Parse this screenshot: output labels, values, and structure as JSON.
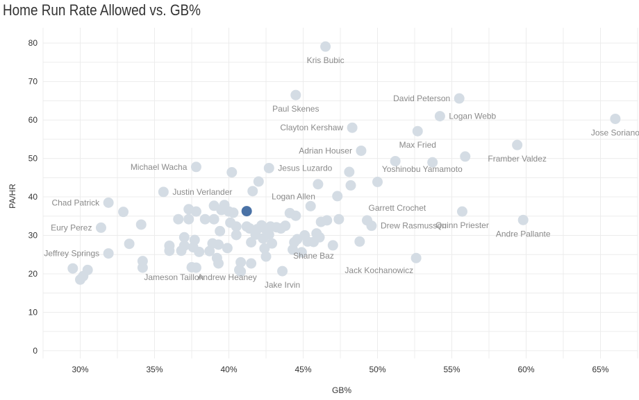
{
  "chart_data": {
    "type": "scatter",
    "title": "Home Run Rate Allowed vs. GB%",
    "xlabel": "GB%",
    "ylabel": "PA/HR",
    "xlim": [
      27.5,
      67.5
    ],
    "ylim": [
      -2,
      84
    ],
    "x_ticks": [
      30,
      35,
      40,
      45,
      50,
      55,
      60,
      65
    ],
    "x_tick_labels": [
      "30%",
      "35%",
      "40%",
      "45%",
      "50%",
      "55%",
      "60%",
      "65%"
    ],
    "y_ticks": [
      0,
      10,
      20,
      30,
      40,
      50,
      60,
      70,
      80
    ],
    "y_tick_labels": [
      "0",
      "10",
      "20",
      "30",
      "40",
      "50",
      "60",
      "70",
      "80"
    ],
    "grid": true,
    "point_color": "#d4dce4",
    "highlight_color": "#4a72a6",
    "labeled_points": [
      {
        "name": "Kris Bubic",
        "x": 46.5,
        "y": 79.1
      },
      {
        "name": "David Peterson",
        "x": 55.5,
        "y": 65.6
      },
      {
        "name": "Paul Skenes",
        "x": 44.5,
        "y": 66.5
      },
      {
        "name": "Logan Webb",
        "x": 54.2,
        "y": 61.0
      },
      {
        "name": "Jose Soriano",
        "x": 66.0,
        "y": 60.3
      },
      {
        "name": "Clayton Kershaw",
        "x": 48.3,
        "y": 58.0
      },
      {
        "name": "Max Fried",
        "x": 52.7,
        "y": 57.1
      },
      {
        "name": "Adrian Houser",
        "x": 48.9,
        "y": 52.0
      },
      {
        "name": "Framber Valdez",
        "x": 59.4,
        "y": 53.5
      },
      {
        "name": "Michael Wacha",
        "x": 37.8,
        "y": 47.8
      },
      {
        "name": "Jesus Luzardo",
        "x": 42.7,
        "y": 47.5
      },
      {
        "name": "Yoshinobu Yamamoto",
        "x": 55.9,
        "y": 50.5
      },
      {
        "name": "Justin Verlander",
        "x": 35.6,
        "y": 41.3
      },
      {
        "name": "Logan Allen",
        "x": 46.0,
        "y": 43.3
      },
      {
        "name": "Chad Patrick",
        "x": 31.9,
        "y": 38.5
      },
      {
        "name": "Garrett Crochet",
        "x": 49.3,
        "y": 33.9
      },
      {
        "name": "Eury Perez",
        "x": 31.4,
        "y": 32.0
      },
      {
        "name": "Drew Rasmussen",
        "x": 49.6,
        "y": 32.5
      },
      {
        "name": "Quinn Priester",
        "x": 55.7,
        "y": 36.2
      },
      {
        "name": "Andre Pallante",
        "x": 59.8,
        "y": 34.0
      },
      {
        "name": "Jeffrey Springs",
        "x": 31.9,
        "y": 25.3
      },
      {
        "name": "Shane Baz",
        "x": 45.7,
        "y": 28.3
      },
      {
        "name": "Jack Kochanowicz",
        "x": 52.6,
        "y": 24.1
      },
      {
        "name": "Jameson Taillon",
        "x": 34.2,
        "y": 21.6
      },
      {
        "name": "Andrew Heaney",
        "x": 37.8,
        "y": 21.6
      },
      {
        "name": "Jake Irvin",
        "x": 43.6,
        "y": 20.7
      }
    ],
    "labels": [
      {
        "text": "Kris Bubic",
        "point": 0,
        "pos": "below"
      },
      {
        "text": "David Peterson",
        "point": 1,
        "pos": "left"
      },
      {
        "text": "Paul Skenes",
        "point": 2,
        "pos": "below"
      },
      {
        "text": "Logan Webb",
        "point": 3,
        "pos": "right"
      },
      {
        "text": "Jose Soriano",
        "point": 4,
        "pos": "below"
      },
      {
        "text": "Clayton Kershaw",
        "point": 5,
        "pos": "left"
      },
      {
        "text": "Max Fried",
        "point": 6,
        "pos": "below"
      },
      {
        "text": "Adrian Houser",
        "point": 7,
        "pos": "left"
      },
      {
        "text": "Framber Valdez",
        "point": 8,
        "pos": "below"
      },
      {
        "text": "Michael Wacha",
        "point": 9,
        "pos": "left"
      },
      {
        "text": "Jesus Luzardo",
        "point": 10,
        "pos": "right"
      },
      {
        "text": "Yoshinobu Yamamoto",
        "point": 11,
        "pos": "below-left"
      },
      {
        "text": "Justin Verlander",
        "point": 12,
        "pos": "right"
      },
      {
        "text": "Logan Allen",
        "point": 13,
        "pos": "below-left"
      },
      {
        "text": "Chad Patrick",
        "point": 14,
        "pos": "left"
      },
      {
        "text": "Garrett Crochet",
        "point": 15,
        "pos": "above-right"
      },
      {
        "text": "Eury Perez",
        "point": 16,
        "pos": "left"
      },
      {
        "text": "Drew Rasmussen",
        "point": 17,
        "pos": "right"
      },
      {
        "text": "Quinn Priester",
        "point": 18,
        "pos": "below"
      },
      {
        "text": "Andre Pallante",
        "point": 19,
        "pos": "below"
      },
      {
        "text": "Jeffrey Springs",
        "point": 20,
        "pos": "left"
      },
      {
        "text": "Shane Baz",
        "point": 21,
        "pos": "below"
      },
      {
        "text": "Jack Kochanowicz",
        "point": 22,
        "pos": "below-left"
      },
      {
        "text": "Jameson Taillon",
        "point": 23,
        "pos": "below-right"
      },
      {
        "text": "Andrew Heaney",
        "point": 24,
        "pos": "below-right"
      },
      {
        "text": "Jake Irvin",
        "point": 25,
        "pos": "below"
      }
    ],
    "highlighted_point": {
      "x": 41.2,
      "y": 36.3
    },
    "points": [
      [
        29.5,
        21.4
      ],
      [
        30.0,
        18.5
      ],
      [
        30.2,
        19.4
      ],
      [
        30.5,
        21.0
      ],
      [
        32.9,
        36.1
      ],
      [
        33.3,
        27.8
      ],
      [
        34.1,
        32.8
      ],
      [
        34.2,
        23.3
      ],
      [
        36.0,
        27.3
      ],
      [
        36.0,
        26.0
      ],
      [
        36.6,
        34.2
      ],
      [
        36.8,
        26.0
      ],
      [
        37.0,
        29.5
      ],
      [
        37.0,
        27.3
      ],
      [
        37.3,
        36.8
      ],
      [
        37.3,
        34.2
      ],
      [
        37.5,
        21.7
      ],
      [
        37.6,
        26.9
      ],
      [
        37.7,
        28.8
      ],
      [
        37.8,
        36.2
      ],
      [
        38.0,
        25.7
      ],
      [
        38.4,
        34.2
      ],
      [
        38.7,
        25.9
      ],
      [
        38.9,
        27.9
      ],
      [
        39.0,
        37.7
      ],
      [
        39.0,
        34.2
      ],
      [
        39.2,
        24.1
      ],
      [
        39.3,
        22.7
      ],
      [
        39.3,
        27.6
      ],
      [
        39.4,
        31.1
      ],
      [
        39.5,
        36.6
      ],
      [
        39.7,
        37.9
      ],
      [
        39.9,
        26.7
      ],
      [
        40.0,
        36.2
      ],
      [
        40.1,
        33.3
      ],
      [
        40.2,
        46.4
      ],
      [
        40.3,
        35.9
      ],
      [
        40.5,
        30.1
      ],
      [
        40.5,
        32.3
      ],
      [
        40.7,
        21.0
      ],
      [
        40.8,
        20.6
      ],
      [
        40.8,
        23.0
      ],
      [
        41.2,
        32.3
      ],
      [
        41.4,
        31.8
      ],
      [
        41.5,
        28.2
      ],
      [
        41.5,
        22.7
      ],
      [
        41.6,
        41.5
      ],
      [
        41.8,
        30.2
      ],
      [
        41.9,
        31.6
      ],
      [
        42.0,
        44.0
      ],
      [
        42.2,
        32.6
      ],
      [
        42.3,
        29.2
      ],
      [
        42.4,
        26.6
      ],
      [
        42.5,
        31.5
      ],
      [
        42.5,
        24.5
      ],
      [
        42.6,
        31.0
      ],
      [
        42.7,
        30.2
      ],
      [
        42.8,
        32.3
      ],
      [
        42.9,
        27.9
      ],
      [
        43.2,
        32.1
      ],
      [
        43.5,
        31.8
      ],
      [
        43.8,
        32.5
      ],
      [
        44.1,
        35.8
      ],
      [
        44.3,
        26.3
      ],
      [
        44.4,
        28.2
      ],
      [
        44.5,
        35.1
      ],
      [
        44.6,
        29.0
      ],
      [
        44.9,
        25.6
      ],
      [
        45.1,
        30.0
      ],
      [
        45.3,
        28.4
      ],
      [
        45.5,
        37.6
      ],
      [
        45.9,
        30.5
      ],
      [
        46.1,
        29.5
      ],
      [
        46.2,
        33.5
      ],
      [
        46.6,
        33.9
      ],
      [
        47.0,
        27.4
      ],
      [
        47.3,
        40.2
      ],
      [
        47.4,
        34.2
      ],
      [
        48.1,
        46.5
      ],
      [
        48.2,
        43.0
      ],
      [
        48.8,
        28.4
      ],
      [
        50.0,
        43.9
      ],
      [
        51.2,
        49.3
      ],
      [
        53.7,
        49.0
      ]
    ]
  }
}
